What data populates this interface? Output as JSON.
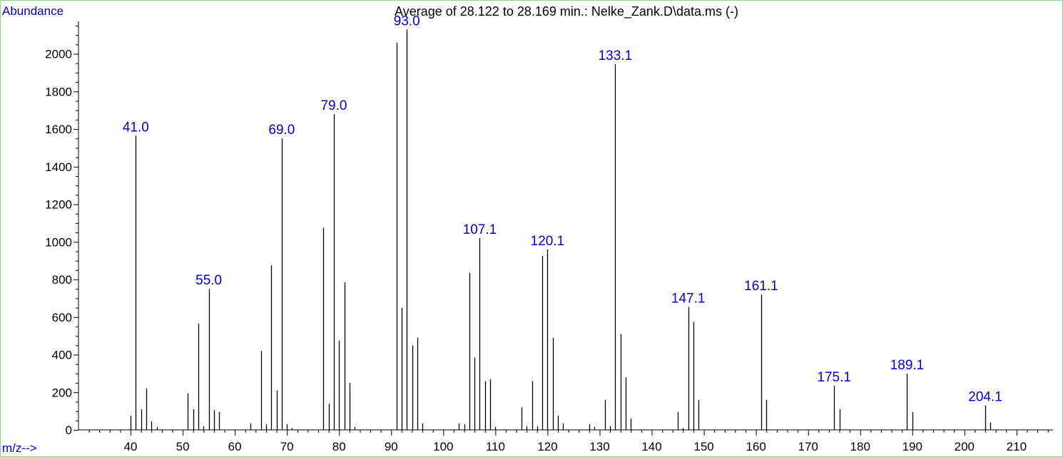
{
  "chart_data": {
    "type": "bar",
    "title": "Average of 28.122 to 28.169 min.: Nelke_Zank.D\\data.ms (-)",
    "ylabel": "Abundance",
    "xlabel": "m/z-->",
    "xlim": [
      30,
      217
    ],
    "ylim": [
      0,
      2150
    ],
    "x_ticks": [
      40,
      50,
      60,
      70,
      80,
      90,
      100,
      110,
      120,
      130,
      140,
      150,
      160,
      170,
      180,
      190,
      200,
      210
    ],
    "y_ticks": [
      0,
      200,
      400,
      600,
      800,
      1000,
      1200,
      1400,
      1600,
      1800,
      2000
    ],
    "grid": false,
    "colors": {
      "bars": "#000000",
      "labels": "#0000cc",
      "frame": "#8fd18f"
    },
    "peaks": [
      [
        40,
        75
      ],
      [
        41,
        1565
      ],
      [
        42,
        110
      ],
      [
        43,
        220
      ],
      [
        44,
        45
      ],
      [
        45,
        15
      ],
      [
        51,
        195
      ],
      [
        52,
        110
      ],
      [
        53,
        565
      ],
      [
        54,
        20
      ],
      [
        55,
        750
      ],
      [
        56,
        105
      ],
      [
        57,
        95
      ],
      [
        63,
        35
      ],
      [
        65,
        420
      ],
      [
        66,
        30
      ],
      [
        67,
        875
      ],
      [
        68,
        210
      ],
      [
        69,
        1550
      ],
      [
        70,
        30
      ],
      [
        71,
        10
      ],
      [
        77,
        1075
      ],
      [
        78,
        140
      ],
      [
        79,
        1680
      ],
      [
        80,
        475
      ],
      [
        81,
        785
      ],
      [
        82,
        250
      ],
      [
        83,
        15
      ],
      [
        91,
        2060
      ],
      [
        92,
        650
      ],
      [
        93,
        2130
      ],
      [
        94,
        450
      ],
      [
        95,
        490
      ],
      [
        96,
        35
      ],
      [
        103,
        35
      ],
      [
        104,
        30
      ],
      [
        105,
        835
      ],
      [
        106,
        385
      ],
      [
        107,
        1020
      ],
      [
        108,
        260
      ],
      [
        109,
        270
      ],
      [
        110,
        15
      ],
      [
        115,
        120
      ],
      [
        116,
        20
      ],
      [
        117,
        260
      ],
      [
        118,
        20
      ],
      [
        119,
        925
      ],
      [
        120,
        960
      ],
      [
        121,
        490
      ],
      [
        122,
        75
      ],
      [
        123,
        35
      ],
      [
        128,
        30
      ],
      [
        129,
        15
      ],
      [
        131,
        160
      ],
      [
        132,
        20
      ],
      [
        133,
        1945
      ],
      [
        134,
        510
      ],
      [
        135,
        280
      ],
      [
        136,
        60
      ],
      [
        145,
        95
      ],
      [
        146,
        10
      ],
      [
        147,
        655
      ],
      [
        148,
        575
      ],
      [
        149,
        160
      ],
      [
        161,
        720
      ],
      [
        162,
        160
      ],
      [
        175,
        235
      ],
      [
        176,
        110
      ],
      [
        189,
        300
      ],
      [
        190,
        95
      ],
      [
        204,
        130
      ],
      [
        205,
        40
      ]
    ],
    "labels": [
      {
        "x": 41,
        "y": 1565,
        "text": "41.0"
      },
      {
        "x": 55,
        "y": 750,
        "text": "55.0"
      },
      {
        "x": 69,
        "y": 1550,
        "text": "69.0"
      },
      {
        "x": 79,
        "y": 1680,
        "text": "79.0"
      },
      {
        "x": 93,
        "y": 2130,
        "text": "93.0"
      },
      {
        "x": 107,
        "y": 1020,
        "text": "107.1"
      },
      {
        "x": 120,
        "y": 960,
        "text": "120.1"
      },
      {
        "x": 133,
        "y": 1945,
        "text": "133.1"
      },
      {
        "x": 147,
        "y": 655,
        "text": "147.1"
      },
      {
        "x": 161,
        "y": 720,
        "text": "161.1"
      },
      {
        "x": 175,
        "y": 235,
        "text": "175.1"
      },
      {
        "x": 189,
        "y": 300,
        "text": "189.1"
      },
      {
        "x": 204,
        "y": 130,
        "text": "204.1"
      }
    ]
  }
}
